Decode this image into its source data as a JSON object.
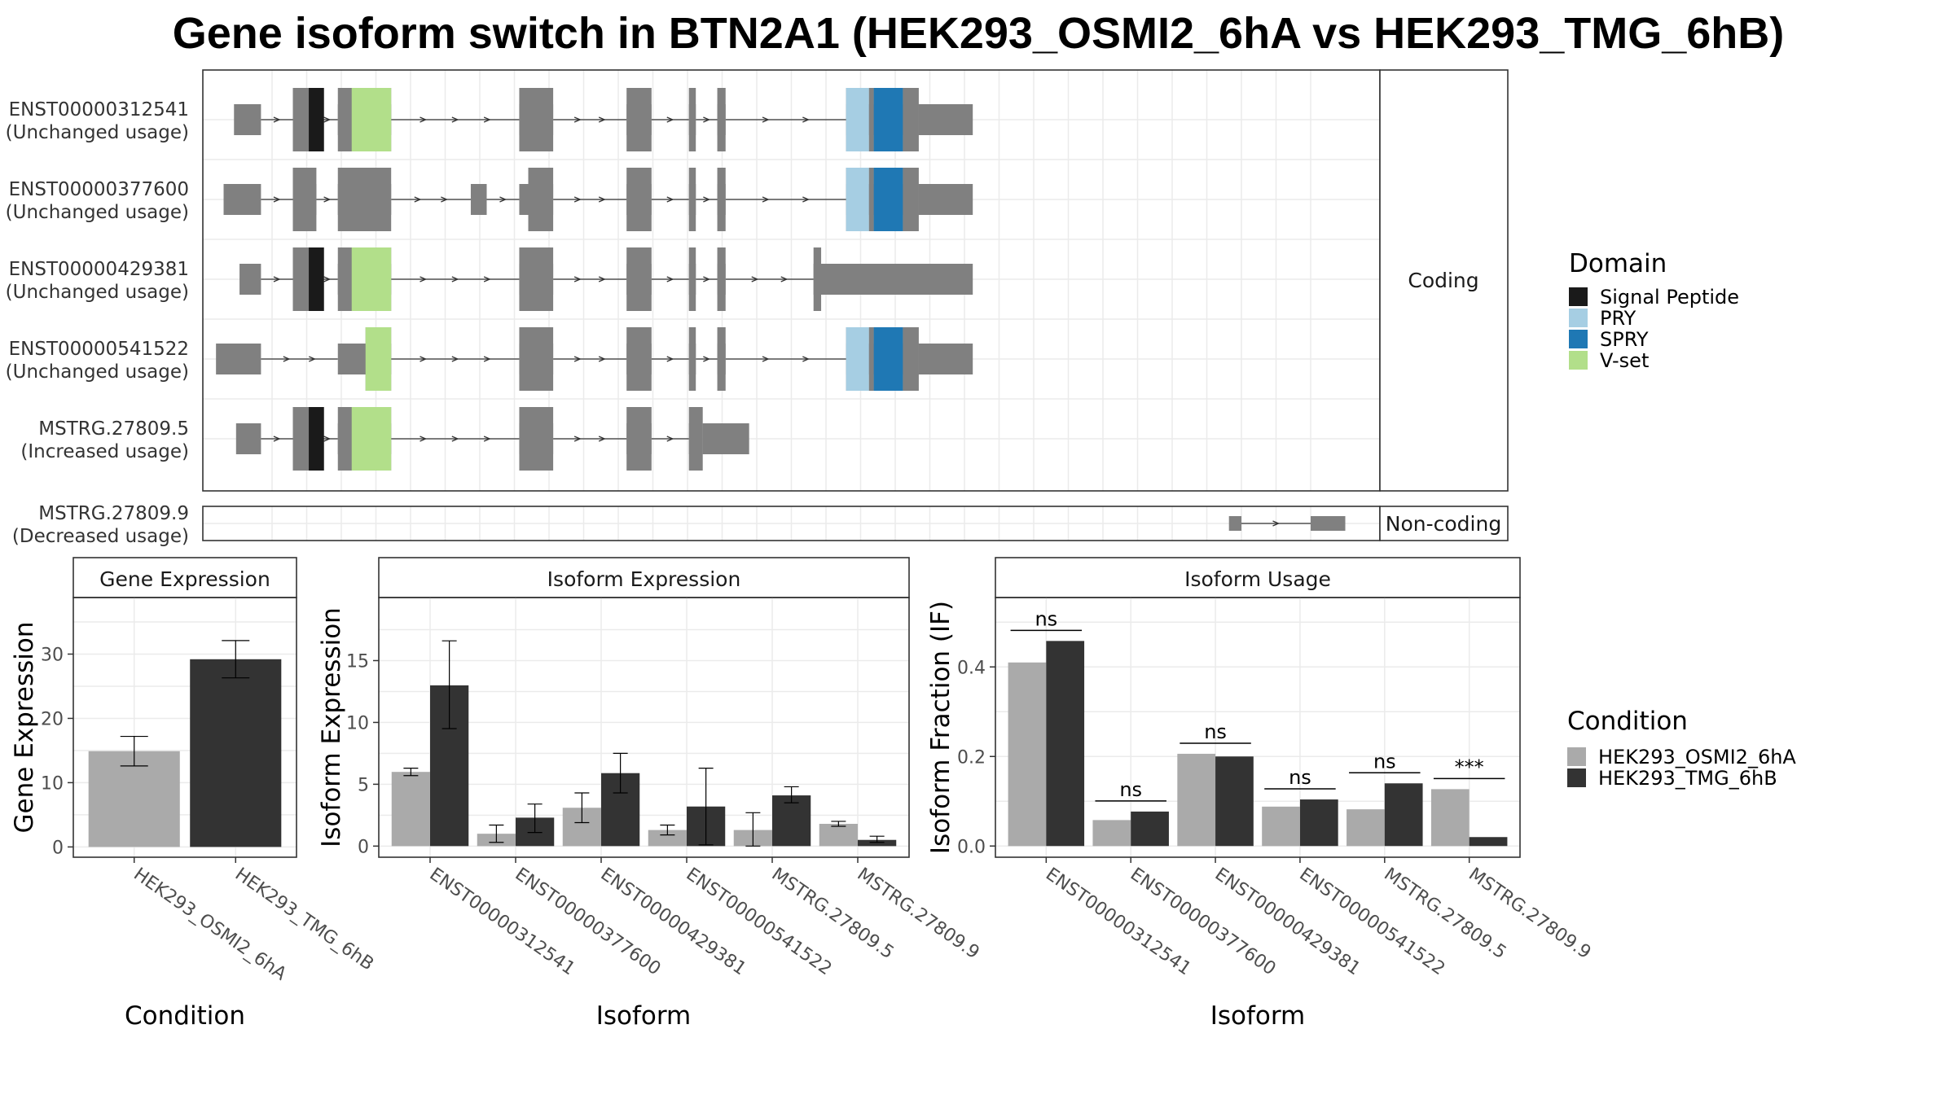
{
  "title": "Gene isoform switch in BTN2A1 (HEK293_OSMI2_6hA vs HEK293_TMG_6hB)",
  "colors": {
    "exon": "#808080",
    "intron": "#333333",
    "signal_peptide": "#1a1a1a",
    "pry": "#a6cee3",
    "spry": "#1f78b4",
    "vset": "#b2df8a",
    "cond_a": "#aaaaaa",
    "cond_b": "#333333"
  },
  "structure": {
    "facets": [
      "Coding",
      "Non-coding"
    ],
    "transcripts": [
      {
        "id": "ENST00000312541",
        "usage": "(Unchanged usage)",
        "facet": "Coding",
        "exons": [
          [
            -1.55,
            -1.16
          ],
          [
            -0.7,
            -0.36
          ],
          [
            -0.05,
            0.72
          ],
          [
            2.57,
            3.06
          ],
          [
            4.12,
            4.48
          ],
          [
            5.02,
            5.12
          ],
          [
            5.43,
            5.55
          ],
          [
            7.29,
            7.62
          ],
          [
            7.62,
            7.69
          ],
          [
            7.69,
            8.11
          ],
          [
            8.11,
            8.34
          ],
          [
            8.34,
            9.12
          ]
        ],
        "coding": [
          [
            -0.7,
            -0.36
          ],
          [
            -0.05,
            0.72
          ],
          [
            2.57,
            3.06
          ],
          [
            4.12,
            4.48
          ],
          [
            5.02,
            5.12
          ],
          [
            5.43,
            5.55
          ],
          [
            7.29,
            7.62
          ],
          [
            7.62,
            7.69
          ],
          [
            7.69,
            8.11
          ],
          [
            8.11,
            8.34
          ]
        ],
        "domains": [
          [
            "signal_peptide",
            -0.47,
            -0.25
          ],
          [
            "vset",
            0.15,
            0.72
          ],
          [
            "pry",
            7.29,
            7.62
          ],
          [
            "spry",
            7.69,
            8.11
          ]
        ]
      },
      {
        "id": "ENST00000377600",
        "usage": "(Unchanged usage)",
        "facet": "Coding",
        "exons": [
          [
            -1.7,
            -1.16
          ],
          [
            -0.7,
            -0.36
          ],
          [
            -0.05,
            0.72
          ],
          [
            1.87,
            2.1
          ],
          [
            2.57,
            3.06
          ],
          [
            4.12,
            4.48
          ],
          [
            5.02,
            5.12
          ],
          [
            5.43,
            5.55
          ],
          [
            7.29,
            7.62
          ],
          [
            7.62,
            7.69
          ],
          [
            7.69,
            8.11
          ],
          [
            8.11,
            8.34
          ],
          [
            8.34,
            9.12
          ]
        ],
        "coding": [
          [
            -0.7,
            -0.36
          ],
          [
            -0.05,
            0.72
          ],
          [
            2.7,
            3.06
          ],
          [
            4.12,
            4.48
          ],
          [
            5.02,
            5.12
          ],
          [
            5.43,
            5.55
          ],
          [
            7.29,
            7.62
          ],
          [
            7.62,
            7.69
          ],
          [
            7.69,
            8.11
          ],
          [
            8.11,
            8.34
          ]
        ],
        "domains": [
          [
            "pry",
            7.29,
            7.62
          ],
          [
            "spry",
            7.69,
            8.11
          ]
        ]
      },
      {
        "id": "ENST00000429381",
        "usage": "(Unchanged usage)",
        "facet": "Coding",
        "exons": [
          [
            -1.47,
            -1.16
          ],
          [
            -0.7,
            -0.36
          ],
          [
            -0.05,
            0.72
          ],
          [
            2.57,
            3.06
          ],
          [
            4.12,
            4.48
          ],
          [
            5.02,
            5.12
          ],
          [
            5.43,
            5.55
          ],
          [
            6.82,
            9.12
          ]
        ],
        "coding": [
          [
            -0.7,
            -0.36
          ],
          [
            -0.05,
            0.72
          ],
          [
            2.57,
            3.06
          ],
          [
            4.12,
            4.48
          ],
          [
            5.02,
            5.12
          ],
          [
            5.43,
            5.55
          ],
          [
            6.82,
            6.93
          ]
        ],
        "domains": [
          [
            "signal_peptide",
            -0.47,
            -0.25
          ],
          [
            "vset",
            0.15,
            0.72
          ]
        ]
      },
      {
        "id": "ENST00000541522",
        "usage": "(Unchanged usage)",
        "facet": "Coding",
        "exons": [
          [
            -1.81,
            -1.16
          ],
          [
            -0.05,
            0.72
          ],
          [
            2.57,
            3.06
          ],
          [
            4.12,
            4.48
          ],
          [
            5.02,
            5.12
          ],
          [
            5.43,
            5.55
          ],
          [
            7.29,
            7.62
          ],
          [
            7.62,
            7.69
          ],
          [
            7.69,
            8.11
          ],
          [
            8.11,
            8.34
          ],
          [
            8.34,
            9.12
          ]
        ],
        "coding": [
          [
            0.35,
            0.72
          ],
          [
            2.57,
            3.06
          ],
          [
            4.12,
            4.48
          ],
          [
            5.02,
            5.12
          ],
          [
            5.43,
            5.55
          ],
          [
            7.29,
            7.62
          ],
          [
            7.62,
            7.69
          ],
          [
            7.69,
            8.11
          ],
          [
            8.11,
            8.34
          ]
        ],
        "domains": [
          [
            "vset",
            0.35,
            0.72
          ],
          [
            "pry",
            7.29,
            7.62
          ],
          [
            "spry",
            7.69,
            8.11
          ]
        ]
      },
      {
        "id": "MSTRG.27809.5",
        "usage": "(Increased usage)",
        "facet": "Coding",
        "exons": [
          [
            -1.52,
            -1.16
          ],
          [
            -0.7,
            -0.36
          ],
          [
            -0.05,
            0.72
          ],
          [
            2.57,
            3.06
          ],
          [
            4.12,
            4.48
          ],
          [
            5.02,
            5.22
          ],
          [
            5.22,
            5.89
          ]
        ],
        "coding": [
          [
            -0.7,
            -0.36
          ],
          [
            -0.05,
            0.72
          ],
          [
            2.57,
            3.06
          ],
          [
            4.12,
            4.48
          ],
          [
            5.02,
            5.22
          ]
        ],
        "domains": [
          [
            "signal_peptide",
            -0.47,
            -0.25
          ],
          [
            "vset",
            0.15,
            0.72
          ]
        ]
      },
      {
        "id": "MSTRG.27809.9",
        "usage": "(Decreased usage)",
        "facet": "Non-coding",
        "exons": [
          [
            12.82,
            13.0
          ],
          [
            14.0,
            14.5
          ]
        ],
        "coding": [],
        "domains": []
      }
    ]
  },
  "legend_domain": {
    "title": "Domain",
    "items": [
      {
        "label": "Signal Peptide",
        "key": "signal_peptide"
      },
      {
        "label": "PRY",
        "key": "pry"
      },
      {
        "label": "SPRY",
        "key": "spry"
      },
      {
        "label": "V-set",
        "key": "vset"
      }
    ]
  },
  "legend_condition": {
    "title": "Condition",
    "items": [
      {
        "label": "HEK293_OSMI2_6hA",
        "key": "cond_a"
      },
      {
        "label": "HEK293_TMG_6hB",
        "key": "cond_b"
      }
    ]
  },
  "chart_data": [
    {
      "type": "bar",
      "title": "Gene Expression",
      "xlabel": "Condition",
      "ylabel": "Gene Expression",
      "categories": [
        "HEK293_OSMI2_6hA",
        "HEK293_TMG_6hB"
      ],
      "values": [
        14.9,
        29.2
      ],
      "errors": [
        [
          12.6,
          17.2
        ],
        [
          26.3,
          32.1
        ]
      ],
      "yticks": [
        0,
        10,
        20,
        30
      ],
      "ylim": [
        -1.6,
        38.8
      ],
      "grid": true
    },
    {
      "type": "bar",
      "title": "Isoform Expression",
      "xlabel": "Isoform",
      "ylabel": "Isoform Expression",
      "categories": [
        "ENST00000312541",
        "ENST00000377600",
        "ENST00000429381",
        "ENST00000541522",
        "MSTRG.27809.5",
        "MSTRG.27809.9"
      ],
      "series": [
        {
          "name": "HEK293_OSMI2_6hA",
          "values": [
            6.0,
            1.0,
            3.1,
            1.3,
            1.3,
            1.8
          ],
          "errors": [
            [
              5.7,
              6.3
            ],
            [
              0.3,
              1.7
            ],
            [
              1.9,
              4.3
            ],
            [
              0.9,
              1.7
            ],
            [
              0.0,
              2.7
            ],
            [
              1.6,
              2.0
            ]
          ]
        },
        {
          "name": "HEK293_TMG_6hB",
          "values": [
            13.0,
            2.3,
            5.9,
            3.2,
            4.1,
            0.5
          ],
          "errors": [
            [
              9.5,
              16.6
            ],
            [
              1.1,
              3.4
            ],
            [
              4.3,
              7.5
            ],
            [
              0.1,
              6.3
            ],
            [
              3.5,
              4.8
            ],
            [
              0.3,
              0.8
            ]
          ]
        }
      ],
      "yticks": [
        0,
        5,
        10,
        15
      ],
      "ylim": [
        -0.9,
        20.1
      ],
      "grid": true
    },
    {
      "type": "bar",
      "title": "Isoform Usage",
      "xlabel": "Isoform",
      "ylabel": "Isoform Fraction (IF)",
      "categories": [
        "ENST00000312541",
        "ENST00000377600",
        "ENST00000429381",
        "ENST00000541522",
        "MSTRG.27809.5",
        "MSTRG.27809.9"
      ],
      "series": [
        {
          "name": "HEK293_OSMI2_6hA",
          "values": [
            0.41,
            0.058,
            0.206,
            0.088,
            0.082,
            0.127
          ]
        },
        {
          "name": "HEK293_TMG_6hB",
          "values": [
            0.458,
            0.077,
            0.2,
            0.104,
            0.14,
            0.02
          ]
        }
      ],
      "annotations": [
        "ns",
        "ns",
        "ns",
        "ns",
        "ns",
        "***"
      ],
      "yticks": [
        0.0,
        0.2,
        0.4
      ],
      "yticklabels": [
        "0.0",
        "0.2",
        "0.4"
      ],
      "ylim": [
        -0.025,
        0.555
      ],
      "grid": true
    }
  ]
}
